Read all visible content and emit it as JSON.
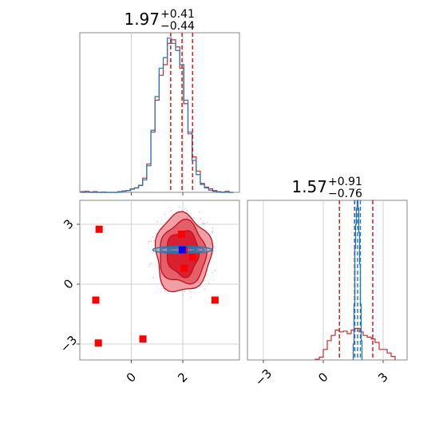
{
  "chart_data": [
    {
      "type": "histogram",
      "panel": "marginal-top",
      "title": {
        "median": "1.97",
        "upper": "+0.41",
        "lower": "−0.44"
      },
      "xlim": [
        -2.0,
        4.2
      ],
      "quantiles": [
        1.53,
        1.97,
        2.38
      ],
      "grid": true,
      "bin_edges": [
        -1.96,
        -1.8,
        -1.64,
        -1.48,
        -1.32,
        -1.16,
        -1.0,
        -0.84,
        -0.68,
        -0.52,
        -0.36,
        -0.2,
        -0.04,
        0.12,
        0.28,
        0.44,
        0.6,
        0.76,
        0.92,
        1.08,
        1.24,
        1.4,
        1.56,
        1.72,
        1.88,
        2.04,
        2.2,
        2.36,
        2.52,
        2.68,
        2.84,
        3.0,
        3.16,
        3.32,
        3.48,
        3.64,
        3.8,
        3.96
      ],
      "series": [
        {
          "color": "#d62728",
          "counts": [
            0.004,
            0.006,
            0.002,
            0.004,
            0.0,
            0.002,
            0.0,
            0.0,
            0.0,
            0.004,
            0.008,
            0.01,
            0.02,
            0.026,
            0.04,
            0.08,
            0.16,
            0.34,
            0.52,
            0.66,
            0.72,
            0.84,
            0.86,
            0.82,
            0.7,
            0.5,
            0.33,
            0.2,
            0.12,
            0.05,
            0.03,
            0.02,
            0.01,
            0.004,
            0.002,
            0.006,
            0.0
          ]
        },
        {
          "color": "#1f77b4",
          "counts": [
            0.0,
            0.0,
            0.0,
            0.0,
            0.0,
            0.0,
            0.0,
            0.0,
            0.0,
            0.002,
            0.006,
            0.01,
            0.018,
            0.024,
            0.038,
            0.07,
            0.15,
            0.35,
            0.54,
            0.7,
            0.76,
            0.87,
            0.84,
            0.8,
            0.72,
            0.52,
            0.34,
            0.18,
            0.1,
            0.045,
            0.025,
            0.012,
            0.006,
            0.003,
            0.0,
            0.0,
            0.0
          ]
        }
      ]
    },
    {
      "type": "scatter",
      "panel": "joint",
      "xlim": [
        -2.0,
        4.2
      ],
      "ylim": [
        -3.8,
        4.2
      ],
      "xticks": [
        0,
        2
      ],
      "yticks": [
        -3,
        0,
        3
      ],
      "xtick_labels": [
        "0",
        "2"
      ],
      "ytick_labels": [
        "−3",
        "0",
        "3"
      ],
      "grid": true,
      "red_points": [
        [
          -1.25,
          2.75
        ],
        [
          -1.38,
          -0.8
        ],
        [
          -1.28,
          -2.95
        ],
        [
          0.45,
          -2.75
        ],
        [
          3.25,
          -0.8
        ],
        [
          1.95,
          2.5
        ],
        [
          2.38,
          1.35
        ],
        [
          2.05,
          0.8
        ],
        [
          2.05,
          1.7
        ]
      ],
      "blue_points": [
        [
          1.98,
          1.72
        ]
      ],
      "red_contour_levels": [
        {
          "rx": 1.08,
          "ry": 1.95,
          "fill": "#f0a0a5"
        },
        {
          "rx": 0.9,
          "ry": 1.55,
          "fill": "#e45f67"
        },
        {
          "rx": 0.62,
          "ry": 1.12,
          "fill": "#d92030"
        }
      ],
      "red_contour_center": [
        2.0,
        1.55
      ],
      "blue_contour_center": [
        1.98,
        1.72
      ],
      "blue_contour": {
        "rx": 1.15,
        "ry": 0.18
      }
    },
    {
      "type": "histogram",
      "panel": "marginal-bottom-right",
      "title": {
        "median": "1.57",
        "upper": "+0.91",
        "lower": "−0.76"
      },
      "xlim": [
        -3.8,
        4.2
      ],
      "xticks": [
        -3,
        0,
        3
      ],
      "xtick_labels": [
        "−3",
        "0",
        "3"
      ],
      "grid": true,
      "red_quantiles": [
        0.81,
        1.57,
        2.48
      ],
      "blue_quantiles": [
        1.58,
        1.72,
        1.86
      ],
      "red_bin_edges": [
        -0.4,
        -0.2,
        0.0,
        0.2,
        0.4,
        0.6,
        0.8,
        1.0,
        1.2,
        1.4,
        1.6,
        1.8,
        2.0,
        2.2,
        2.4,
        2.6,
        2.8,
        3.0,
        3.2,
        3.4,
        3.6
      ],
      "red_counts": [
        0.002,
        0.008,
        0.03,
        0.055,
        0.07,
        0.085,
        0.08,
        0.082,
        0.075,
        0.085,
        0.09,
        0.08,
        0.07,
        0.065,
        0.06,
        0.05,
        0.03,
        0.03,
        0.02,
        0.01
      ],
      "blue_bin_edges": [
        1.5,
        1.54,
        1.58,
        1.62,
        1.66,
        1.7,
        1.74,
        1.78,
        1.82,
        1.86,
        1.9,
        1.94
      ],
      "blue_counts": [
        0.1,
        0.35,
        0.7,
        0.85,
        0.95,
        1.0,
        0.95,
        0.8,
        0.6,
        0.35,
        0.12
      ]
    }
  ]
}
